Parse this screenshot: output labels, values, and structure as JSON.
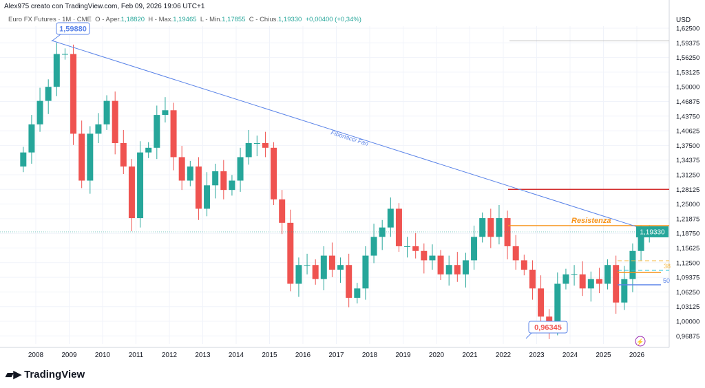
{
  "credit": "Alex975 creato con TradingView.com, Feb 09, 2026 19:06 UTC+1",
  "legend": {
    "symbol": "Euro FX Futures · 1M · CME",
    "o_label": "O - Aper.",
    "o": "1,18820",
    "h_label": "H - Max.",
    "h": "1,19465",
    "l_label": "L - Min.",
    "l": "1,17855",
    "c_label": "C - Chius.",
    "c": "1,19330",
    "change": "+0,00400 (+0,34%)"
  },
  "currency": "USD",
  "brand": "TradingView",
  "colors": {
    "up": "#26a69a",
    "down": "#ef5350",
    "fan": "#5b84e8",
    "resistance": "#f7931a",
    "red_line": "#d32f2f"
  },
  "annotations": {
    "high_label": "1,59880",
    "low_label": "0,96345",
    "fan_label": "Fibonacci Fan",
    "resistance_label": "Resistenza",
    "fib38": "38",
    "fib50": "50",
    "last_price": "1,19330"
  },
  "chart_data": {
    "type": "candlestick",
    "interval": "1M (shown approximated quarterly)",
    "x_start": "2007-07",
    "x_step": "quarter",
    "closes": [
      1.36,
      1.42,
      1.47,
      1.5,
      1.57,
      1.57,
      1.4,
      1.3,
      1.4,
      1.42,
      1.47,
      1.38,
      1.33,
      1.22,
      1.36,
      1.37,
      1.44,
      1.45,
      1.35,
      1.3,
      1.33,
      1.24,
      1.29,
      1.32,
      1.28,
      1.3,
      1.35,
      1.38,
      1.38,
      1.37,
      1.26,
      1.21,
      1.08,
      1.12,
      1.12,
      1.09,
      1.14,
      1.11,
      1.12,
      1.05,
      1.07,
      1.14,
      1.18,
      1.2,
      1.24,
      1.16,
      1.16,
      1.15,
      1.13,
      1.14,
      1.1,
      1.12,
      1.1,
      1.13,
      1.18,
      1.22,
      1.18,
      1.22,
      1.16,
      1.13,
      1.11,
      1.07,
      1.01,
      0.99,
      1.08,
      1.1,
      1.1,
      1.07,
      1.09,
      1.08,
      1.12,
      1.04,
      1.09,
      1.15,
      1.18,
      1.193
    ],
    "x_ticks": [
      "2008",
      "2009",
      "2010",
      "2011",
      "2012",
      "2013",
      "2014",
      "2015",
      "2016",
      "2017",
      "2018",
      "2019",
      "2020",
      "2021",
      "2022",
      "2023",
      "2024",
      "2025",
      "2026"
    ],
    "y_ticks": [
      "1,62500",
      "1,59375",
      "1,56250",
      "1,53125",
      "1,50000",
      "1,46875",
      "1,43750",
      "1,40625",
      "1,37500",
      "1,34375",
      "1,31250",
      "1,28125",
      "1,25000",
      "1,21875",
      "1,18750",
      "1,15625",
      "1,12500",
      "1,09375",
      "1,06250",
      "1,03125",
      "1,00000",
      "0,96875"
    ],
    "ylim": [
      0.95,
      1.64
    ],
    "grid": true,
    "levels": {
      "resistance": 1.204,
      "red": 1.28125,
      "gray": 1.598
    }
  }
}
